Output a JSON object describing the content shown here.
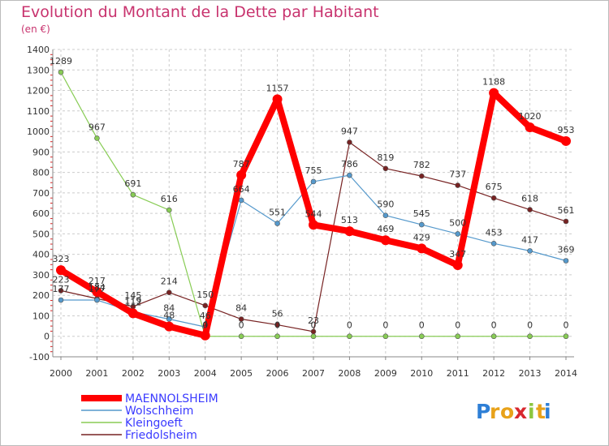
{
  "chart_data": {
    "type": "line",
    "title": "Evolution du Montant de la Dette par Habitant",
    "subtitle": "(en €)",
    "x": [
      "2000",
      "2001",
      "2002",
      "2003",
      "2004",
      "2005",
      "2006",
      "2007",
      "2008",
      "2009",
      "2010",
      "2011",
      "2012",
      "2013",
      "2014"
    ],
    "ylim": [
      -100,
      1400
    ],
    "yticks": [
      -100,
      0,
      100,
      200,
      300,
      400,
      500,
      600,
      700,
      800,
      900,
      1000,
      1100,
      1200,
      1300,
      1400
    ],
    "grid": "horizontal",
    "legend": "bottom-left",
    "series": [
      {
        "name": "MAENNOLSHEIM",
        "color": "#ff0000",
        "values": [
          323,
          217,
          112,
          48,
          4,
          787,
          1157,
          544,
          513,
          469,
          429,
          347,
          1188,
          1020,
          953
        ],
        "labels": [
          "323",
          "217",
          "112",
          "48",
          "4",
          "787",
          "1157",
          "544",
          "513",
          "469",
          "429",
          "347",
          "1188",
          "1020",
          "953"
        ]
      },
      {
        "name": "Wolschheim",
        "color": "#5599cc",
        "values": [
          177,
          177,
          119,
          84,
          46,
          664,
          551,
          755,
          786,
          590,
          545,
          500,
          453,
          417,
          369
        ],
        "labels": [
          "177",
          "177",
          "119",
          "84",
          "46",
          "664",
          "551",
          "755",
          "786",
          "590",
          "545",
          "500",
          "453",
          "417",
          "369"
        ]
      },
      {
        "name": "Kleingoeft",
        "color": "#88cc55",
        "values": [
          1289,
          967,
          691,
          616,
          0,
          0,
          0,
          0,
          0,
          0,
          0,
          0,
          0,
          0,
          0
        ],
        "labels": [
          "1289",
          "967",
          "691",
          "616",
          "0",
          "0",
          "0",
          "0",
          "0",
          "0",
          "0",
          "0",
          "0",
          "0",
          "0"
        ]
      },
      {
        "name": "Friedolsheim",
        "color": "#772222",
        "values": [
          223,
          184,
          145,
          214,
          150,
          84,
          56,
          23,
          947,
          819,
          782,
          737,
          675,
          618,
          561
        ],
        "labels": [
          "223",
          "184",
          "145",
          "214",
          "150",
          "84",
          "56",
          "23",
          "947",
          "819",
          "782",
          "737",
          "675",
          "618",
          "561"
        ]
      }
    ]
  },
  "logo": {
    "letters": [
      "P",
      "r",
      "o",
      "x",
      "i",
      "t",
      "i"
    ],
    "colors": [
      "#2e7fd6",
      "#e8a21a",
      "#e8a21a",
      "#d8282f",
      "#8cc63f",
      "#e8a21a",
      "#2e7fd6"
    ]
  }
}
